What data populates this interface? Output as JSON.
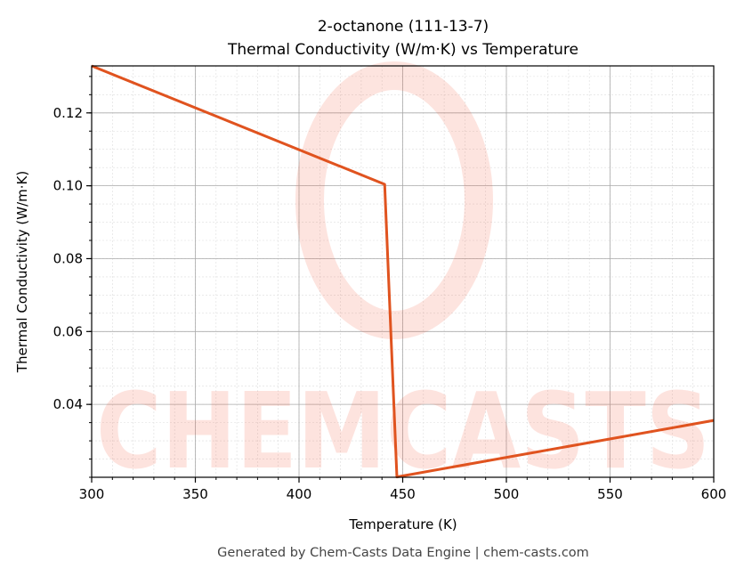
{
  "chart_data": {
    "type": "line",
    "title": "2-octanone (111-13-7)",
    "subtitle": "Thermal Conductivity (W/m·K) vs Temperature",
    "xlabel": "Temperature (K)",
    "ylabel": "Thermal Conductivity (W/m·K)",
    "xlim": [
      300,
      600
    ],
    "ylim": [
      0.02,
      0.1329
    ],
    "xticks": [
      300,
      350,
      400,
      450,
      500,
      550,
      600
    ],
    "xtick_labels": [
      "300",
      "350",
      "400",
      "450",
      "500",
      "550",
      "600"
    ],
    "yticks": [
      0.04,
      0.06,
      0.08,
      0.1,
      0.12
    ],
    "ytick_labels": [
      "0.04",
      "0.06",
      "0.08",
      "0.10",
      "0.12"
    ],
    "grid": true,
    "minor_grid": true,
    "series": [
      {
        "color": "#e0531f",
        "x": [
          300,
          441.3,
          447.2,
          600
        ],
        "y": [
          0.1329,
          0.1004,
          0.0201,
          0.0356
        ]
      }
    ],
    "watermark": "CHEMCASTS",
    "footer": "Generated by Chem-Casts Data Engine | chem-casts.com"
  }
}
